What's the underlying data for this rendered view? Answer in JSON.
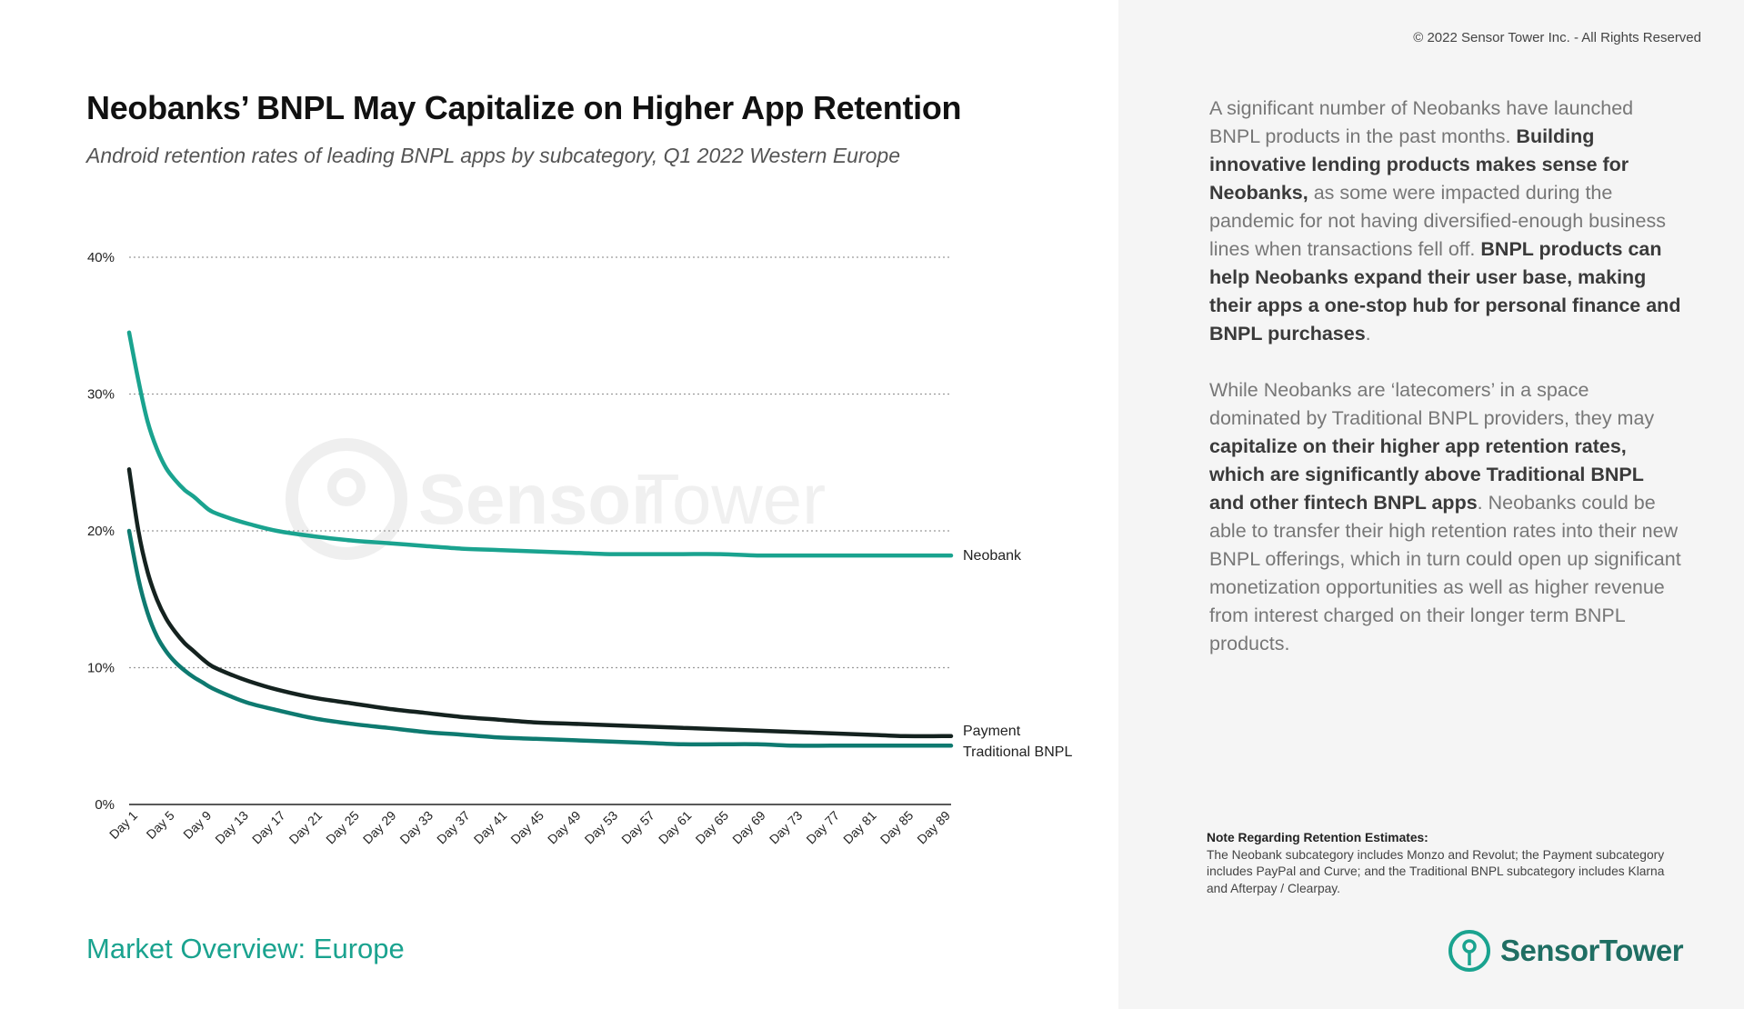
{
  "header": {
    "title": "Neobanks’ BNPL May Capitalize on Higher App Retention",
    "subtitle": "Android retention rates of leading BNPL apps by subcategory, Q1 2022 Western Europe",
    "copyright": "© 2022 Sensor Tower Inc. - All Rights Reserved"
  },
  "footer": {
    "section": "Market Overview: Europe"
  },
  "watermark": {
    "text_a": "Sensor",
    "text_b": "Tower"
  },
  "commentary": {
    "p1": [
      {
        "text": "A significant number of Neobanks have launched BNPL products in the past months. ",
        "bold": false
      },
      {
        "text": "Building innovative lending products makes sense for Neobanks,",
        "bold": true
      },
      {
        "text": " as some were impacted during the pandemic for not having diversified-enough business lines when transactions fell off. ",
        "bold": false
      },
      {
        "text": "BNPL products can help Neobanks expand their user base, making their apps a one-stop hub for personal finance and BNPL purchases",
        "bold": true
      },
      {
        "text": ".",
        "bold": false
      }
    ],
    "p2": [
      {
        "text": "While Neobanks are ‘latecomers’ in a space dominated by Traditional BNPL providers, they may ",
        "bold": false
      },
      {
        "text": "capitalize on their higher app retention rates, which are significantly above Traditional BNPL and other fintech BNPL apps",
        "bold": true
      },
      {
        "text": ". Neobanks could be able to transfer their high retention rates into their new BNPL offerings, which in turn could open up significant monetization opportunities as well as higher revenue from interest charged on their longer term BNPL products.",
        "bold": false
      }
    ]
  },
  "note": {
    "title": "Note Regarding Retention Estimates:",
    "text": "The Neobank subcategory includes Monzo and Revolut; the Payment subcategory includes PayPal and Curve; and the Traditional BNPL subcategory includes Klarna and Afterpay / Clearpay."
  },
  "logo": {
    "name_a": "Sensor",
    "name_b": "Tower",
    "icon": "sensor-tower-logo-icon"
  },
  "chart_data": {
    "type": "line",
    "title": "Neobanks’ BNPL May Capitalize on Higher App Retention",
    "subtitle": "Android retention rates of leading BNPL apps by subcategory, Q1 2022 Western Europe",
    "xlabel": "",
    "ylabel": "",
    "ylim": [
      0,
      40
    ],
    "y_ticks": [
      "0%",
      "10%",
      "20%",
      "30%",
      "40%"
    ],
    "y_tick_values": [
      0,
      10,
      20,
      30,
      40
    ],
    "x_tick_labels": [
      "Day 1",
      "Day 5",
      "Day 9",
      "Day 13",
      "Day 17",
      "Day 21",
      "Day 25",
      "Day 29",
      "Day 33",
      "Day 37",
      "Day 41",
      "Day 45",
      "Day 49",
      "Day 53",
      "Day 57",
      "Day 61",
      "Day 65",
      "Day 69",
      "Day 73",
      "Day 77",
      "Day 81",
      "Day 85",
      "Day 89"
    ],
    "x_range": [
      1,
      90
    ],
    "grid": "horizontal-dotted",
    "legend": "inline-right",
    "series": [
      {
        "name": "Neobank",
        "color": "#1aa38f",
        "x": [
          1,
          2,
          3,
          4,
          5,
          6,
          7,
          8,
          9,
          10,
          12,
          14,
          17,
          21,
          25,
          29,
          33,
          37,
          41,
          45,
          49,
          53,
          57,
          61,
          65,
          69,
          73,
          77,
          81,
          85,
          89,
          90
        ],
        "values": [
          34.5,
          31.0,
          28.0,
          26.0,
          24.6,
          23.7,
          23.0,
          22.5,
          21.9,
          21.4,
          20.9,
          20.5,
          20.0,
          19.6,
          19.3,
          19.1,
          18.9,
          18.7,
          18.6,
          18.5,
          18.4,
          18.3,
          18.3,
          18.3,
          18.3,
          18.2,
          18.2,
          18.2,
          18.2,
          18.2,
          18.2,
          18.2
        ]
      },
      {
        "name": "Payment",
        "color": "#14221f",
        "x": [
          1,
          2,
          3,
          4,
          5,
          6,
          7,
          8,
          9,
          10,
          12,
          14,
          17,
          21,
          25,
          29,
          33,
          37,
          41,
          45,
          49,
          53,
          57,
          61,
          65,
          69,
          73,
          77,
          81,
          85,
          89,
          90
        ],
        "values": [
          24.5,
          20.0,
          17.0,
          15.0,
          13.6,
          12.6,
          11.8,
          11.2,
          10.6,
          10.1,
          9.5,
          9.0,
          8.4,
          7.8,
          7.4,
          7.0,
          6.7,
          6.4,
          6.2,
          6.0,
          5.9,
          5.8,
          5.7,
          5.6,
          5.5,
          5.4,
          5.3,
          5.2,
          5.1,
          5.0,
          5.0,
          5.0
        ]
      },
      {
        "name": "Traditional BNPL",
        "color": "#0e7a70",
        "x": [
          1,
          2,
          3,
          4,
          5,
          6,
          7,
          8,
          9,
          10,
          12,
          14,
          17,
          21,
          25,
          29,
          33,
          37,
          41,
          45,
          49,
          53,
          57,
          61,
          65,
          69,
          73,
          77,
          81,
          85,
          89,
          90
        ],
        "values": [
          20.0,
          16.5,
          14.0,
          12.3,
          11.2,
          10.4,
          9.8,
          9.3,
          8.9,
          8.5,
          7.9,
          7.4,
          6.9,
          6.3,
          5.9,
          5.6,
          5.3,
          5.1,
          4.9,
          4.8,
          4.7,
          4.6,
          4.5,
          4.4,
          4.4,
          4.4,
          4.3,
          4.3,
          4.3,
          4.3,
          4.3,
          4.3
        ]
      }
    ]
  }
}
